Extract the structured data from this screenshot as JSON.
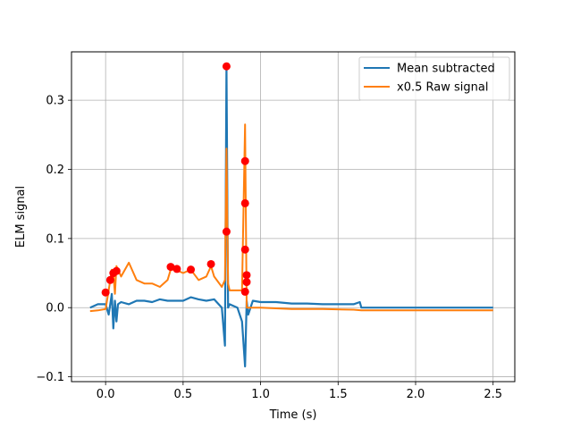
{
  "chart_data": {
    "type": "line",
    "xlabel": "Time (s)",
    "ylabel": "ELM signal",
    "xlim": [
      -0.22,
      2.64
    ],
    "ylim": [
      -0.107,
      0.37
    ],
    "x_ticks": [
      0.0,
      0.5,
      1.0,
      1.5,
      2.0,
      2.5
    ],
    "x_tick_labels": [
      "0.0",
      "0.5",
      "1.0",
      "1.5",
      "2.0",
      "2.5"
    ],
    "y_ticks": [
      -0.1,
      0.0,
      0.1,
      0.2,
      0.3
    ],
    "y_tick_labels": [
      "−0.1",
      "0.0",
      "0.1",
      "0.2",
      "0.3"
    ],
    "grid": true,
    "legend_position": "top-right",
    "series": [
      {
        "name": "Mean subtracted",
        "color": "#1f77b4",
        "x": [
          -0.1,
          -0.05,
          0.0,
          0.02,
          0.04,
          0.05,
          0.06,
          0.07,
          0.08,
          0.1,
          0.15,
          0.2,
          0.25,
          0.3,
          0.35,
          0.4,
          0.45,
          0.5,
          0.55,
          0.6,
          0.65,
          0.7,
          0.75,
          0.77,
          0.78,
          0.79,
          0.8,
          0.85,
          0.88,
          0.9,
          0.91,
          0.92,
          0.95,
          1.0,
          1.1,
          1.2,
          1.3,
          1.4,
          1.5,
          1.6,
          1.64,
          1.65,
          1.7,
          1.8,
          2.0,
          2.2,
          2.4,
          2.5
        ],
        "y": [
          0.0,
          0.005,
          0.005,
          -0.01,
          0.02,
          -0.03,
          0.01,
          -0.02,
          0.005,
          0.008,
          0.005,
          0.01,
          0.01,
          0.008,
          0.012,
          0.01,
          0.01,
          0.01,
          0.015,
          0.012,
          0.01,
          0.012,
          0.0,
          -0.055,
          0.35,
          0.0,
          0.005,
          0.0,
          -0.02,
          -0.085,
          0.01,
          -0.01,
          0.01,
          0.008,
          0.008,
          0.006,
          0.006,
          0.005,
          0.005,
          0.005,
          0.008,
          0.0,
          0.0,
          0.0,
          0.0,
          0.0,
          0.0,
          0.0
        ]
      },
      {
        "name": "x0.5 Raw signal",
        "color": "#ff7f0e",
        "x": [
          -0.1,
          -0.05,
          0.0,
          0.02,
          0.04,
          0.05,
          0.06,
          0.07,
          0.1,
          0.15,
          0.2,
          0.25,
          0.3,
          0.35,
          0.4,
          0.42,
          0.45,
          0.5,
          0.55,
          0.6,
          0.65,
          0.68,
          0.7,
          0.75,
          0.77,
          0.78,
          0.79,
          0.8,
          0.85,
          0.88,
          0.9,
          0.91,
          0.93,
          1.0,
          1.2,
          1.4,
          1.6,
          1.65,
          1.8,
          2.0,
          2.2,
          2.4,
          2.5
        ],
        "y": [
          -0.005,
          -0.004,
          -0.002,
          0.025,
          0.055,
          0.05,
          0.02,
          0.06,
          0.045,
          0.065,
          0.04,
          0.035,
          0.035,
          0.03,
          0.04,
          0.055,
          0.055,
          0.05,
          0.055,
          0.04,
          0.045,
          0.06,
          0.045,
          0.03,
          0.04,
          0.23,
          0.035,
          0.025,
          0.025,
          0.025,
          0.265,
          0.0,
          0.0,
          0.0,
          -0.002,
          -0.002,
          -0.003,
          -0.004,
          -0.004,
          -0.004,
          -0.004,
          -0.004,
          -0.004
        ]
      }
    ],
    "peak_markers": {
      "color": "#ff0000",
      "x": [
        0.0,
        0.03,
        0.05,
        0.07,
        0.42,
        0.46,
        0.55,
        0.68,
        0.78,
        0.78,
        0.9,
        0.9,
        0.9,
        0.91,
        0.91,
        0.9
      ],
      "y": [
        0.022,
        0.04,
        0.05,
        0.053,
        0.059,
        0.056,
        0.055,
        0.063,
        0.349,
        0.11,
        0.212,
        0.151,
        0.084,
        0.047,
        0.037,
        0.023
      ]
    }
  }
}
